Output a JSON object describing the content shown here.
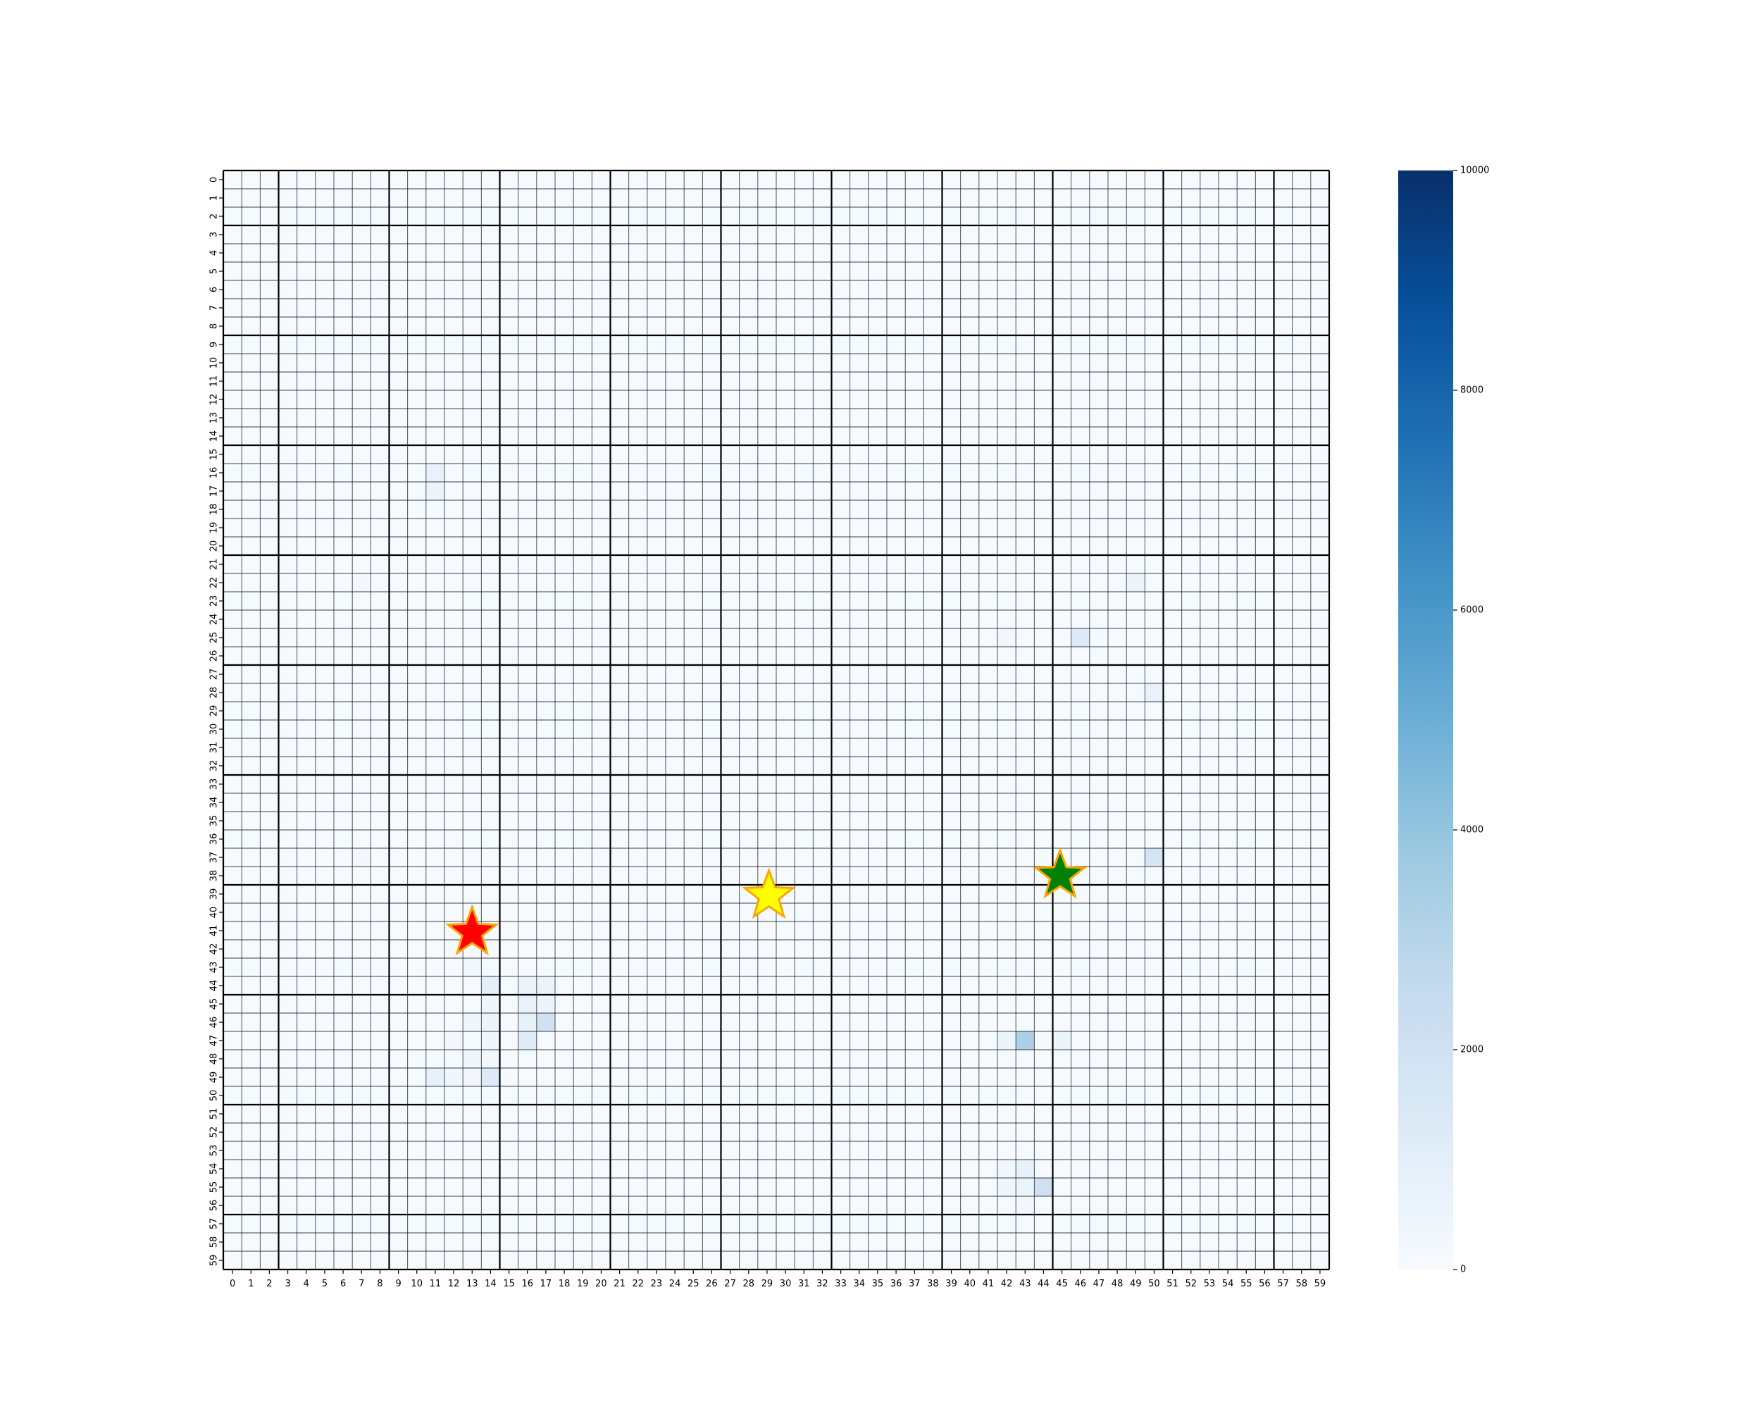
{
  "chart_data": {
    "type": "heatmap",
    "title": "",
    "xlabel": "",
    "ylabel": "",
    "rows": 60,
    "cols": 60,
    "x_ticks": [
      0,
      1,
      2,
      3,
      4,
      5,
      6,
      7,
      8,
      9,
      10,
      11,
      12,
      13,
      14,
      15,
      16,
      17,
      18,
      19,
      20,
      21,
      22,
      23,
      24,
      25,
      26,
      27,
      28,
      29,
      30,
      31,
      32,
      33,
      34,
      35,
      36,
      37,
      38,
      39,
      40,
      41,
      42,
      43,
      44,
      45,
      46,
      47,
      48,
      49,
      50,
      51,
      52,
      53,
      54,
      55,
      56,
      57,
      58,
      59
    ],
    "y_ticks": [
      0,
      1,
      2,
      3,
      4,
      5,
      6,
      7,
      8,
      9,
      10,
      11,
      12,
      13,
      14,
      15,
      16,
      17,
      18,
      19,
      20,
      21,
      22,
      23,
      24,
      25,
      26,
      27,
      28,
      29,
      30,
      31,
      32,
      33,
      34,
      35,
      36,
      37,
      38,
      39,
      40,
      41,
      42,
      43,
      44,
      45,
      46,
      47,
      48,
      49,
      50,
      51,
      52,
      53,
      54,
      55,
      56,
      57,
      58,
      59
    ],
    "grid_major_every": 6,
    "colormap": "Blues",
    "colormap_stops": [
      "#f7fbff",
      "#deebf7",
      "#c6dbef",
      "#9ecae1",
      "#6baed6",
      "#4292c6",
      "#2171b5",
      "#08519c",
      "#08306b"
    ],
    "colorbar": {
      "min": 0,
      "max": 10000,
      "ticks": [
        0,
        2000,
        4000,
        6000,
        8000,
        10000
      ],
      "tick_labels": [
        "0",
        "2000",
        "4000",
        "6000",
        "8000",
        "10000"
      ]
    },
    "background_value": 80,
    "cells": [
      {
        "row": 16,
        "col": 11,
        "value": 700
      },
      {
        "row": 17,
        "col": 11,
        "value": 500
      },
      {
        "row": 22,
        "col": 7,
        "value": 250
      },
      {
        "row": 22,
        "col": 49,
        "value": 600
      },
      {
        "row": 25,
        "col": 46,
        "value": 1300
      },
      {
        "row": 25,
        "col": 42,
        "value": 300
      },
      {
        "row": 28,
        "col": 50,
        "value": 700
      },
      {
        "row": 37,
        "col": 50,
        "value": 1800
      },
      {
        "row": 37,
        "col": 7,
        "value": 300
      },
      {
        "row": 43,
        "col": 13,
        "value": 300
      },
      {
        "row": 44,
        "col": 14,
        "value": 900
      },
      {
        "row": 44,
        "col": 16,
        "value": 500
      },
      {
        "row": 44,
        "col": 17,
        "value": 600
      },
      {
        "row": 45,
        "col": 14,
        "value": 400
      },
      {
        "row": 45,
        "col": 16,
        "value": 700
      },
      {
        "row": 45,
        "col": 17,
        "value": 500
      },
      {
        "row": 46,
        "col": 13,
        "value": 400
      },
      {
        "row": 46,
        "col": 14,
        "value": 500
      },
      {
        "row": 46,
        "col": 16,
        "value": 800
      },
      {
        "row": 46,
        "col": 17,
        "value": 2000
      },
      {
        "row": 47,
        "col": 12,
        "value": 300
      },
      {
        "row": 47,
        "col": 14,
        "value": 400
      },
      {
        "row": 47,
        "col": 16,
        "value": 1200
      },
      {
        "row": 47,
        "col": 43,
        "value": 3300
      },
      {
        "row": 47,
        "col": 42,
        "value": 500
      },
      {
        "row": 47,
        "col": 45,
        "value": 500
      },
      {
        "row": 48,
        "col": 13,
        "value": 400
      },
      {
        "row": 48,
        "col": 14,
        "value": 300
      },
      {
        "row": 49,
        "col": 11,
        "value": 800
      },
      {
        "row": 49,
        "col": 12,
        "value": 400
      },
      {
        "row": 49,
        "col": 14,
        "value": 1300
      },
      {
        "row": 49,
        "col": 13,
        "value": 300
      },
      {
        "row": 54,
        "col": 43,
        "value": 800
      },
      {
        "row": 54,
        "col": 42,
        "value": 300
      },
      {
        "row": 55,
        "col": 44,
        "value": 2100
      },
      {
        "row": 55,
        "col": 42,
        "value": 400
      },
      {
        "row": 55,
        "col": 43,
        "value": 500
      },
      {
        "row": 56,
        "col": 43,
        "value": 300
      }
    ],
    "markers": [
      {
        "name": "red",
        "x": 13,
        "y": 41.1,
        "fill": "#ff0000",
        "edge": "#ffa500"
      },
      {
        "name": "yellow",
        "x": 29.1,
        "y": 39.1,
        "fill": "#ffff00",
        "edge": "#ffa500"
      },
      {
        "name": "green",
        "x": 44.9,
        "y": 38.0,
        "fill": "#008000",
        "edge": "#ffa500"
      }
    ]
  }
}
